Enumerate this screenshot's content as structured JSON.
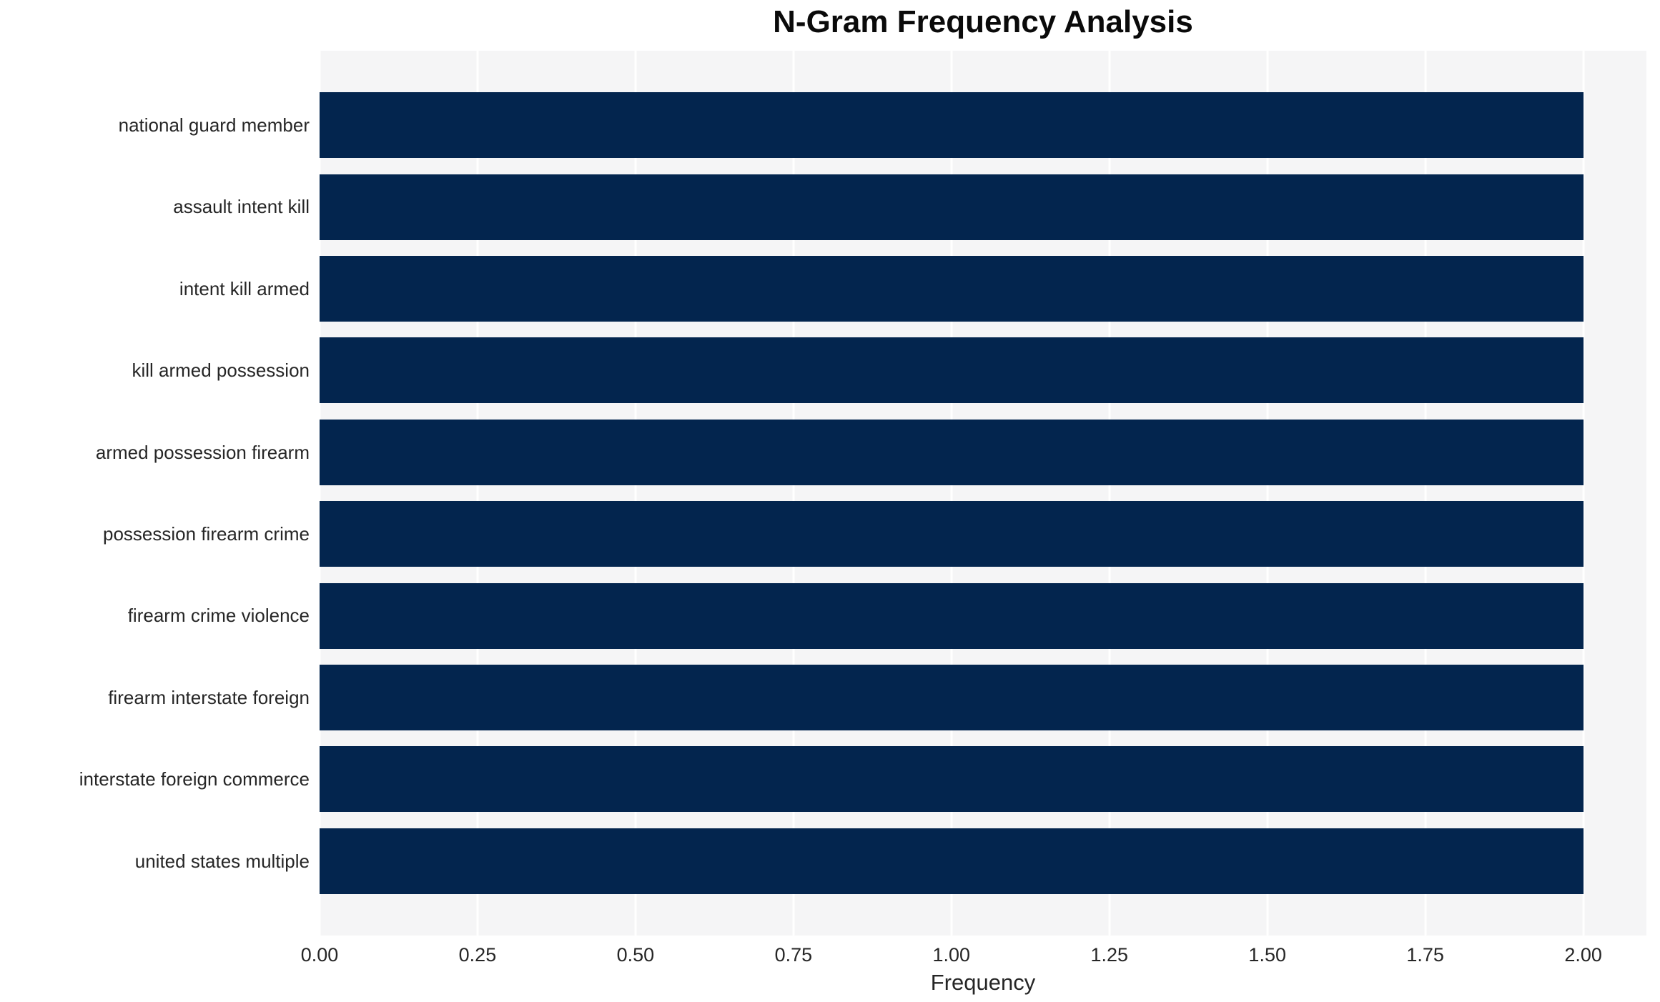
{
  "title": "N-Gram Frequency Analysis",
  "chart_data": {
    "type": "bar",
    "orientation": "horizontal",
    "title": "N-Gram Frequency Analysis",
    "xlabel": "Frequency",
    "ylabel": "",
    "categories": [
      "national guard member",
      "assault intent kill",
      "intent kill armed",
      "kill armed possession",
      "armed possession firearm",
      "possession firearm crime",
      "firearm crime violence",
      "firearm interstate foreign",
      "interstate foreign commerce",
      "united states multiple"
    ],
    "values": [
      2,
      2,
      2,
      2,
      2,
      2,
      2,
      2,
      2,
      2
    ],
    "xlim": [
      0,
      2.1
    ],
    "x_ticks": [
      0,
      0.25,
      0.5,
      0.75,
      1.0,
      1.25,
      1.5,
      1.75,
      2.0
    ],
    "x_tick_labels": [
      "0.00",
      "0.25",
      "0.50",
      "0.75",
      "1.00",
      "1.25",
      "1.50",
      "1.75",
      "2.00"
    ],
    "grid": "vertical white gridlines on light panel",
    "legend": "none",
    "colors": {
      "bar": "#03254e",
      "panel_bg": "#f5f5f6",
      "gridline": "#ffffff",
      "text": "#262626",
      "title": "#0a0a0a",
      "figure_bg": "#ffffff"
    }
  }
}
